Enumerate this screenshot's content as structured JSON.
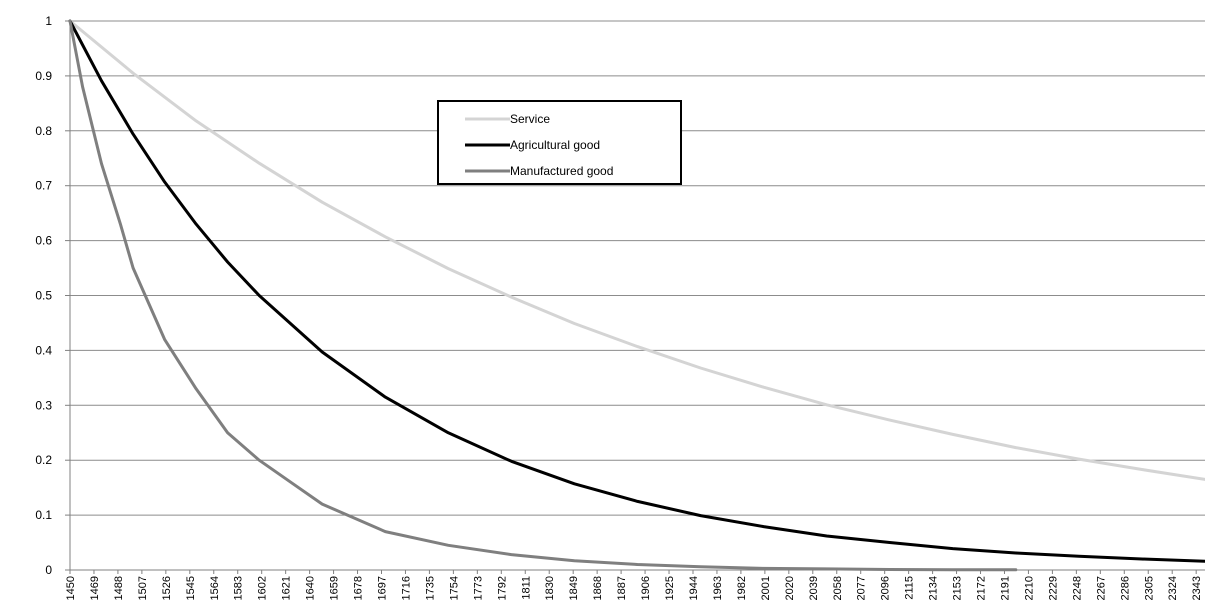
{
  "chart_data": {
    "type": "line",
    "title": "",
    "xlabel": "",
    "ylabel": "",
    "ylim": [
      0,
      1
    ],
    "yticks": [
      "0",
      "0.1",
      "0.2",
      "0.3",
      "0.4",
      "0.5",
      "0.6",
      "0.7",
      "0.8",
      "0.9",
      "1"
    ],
    "x_start": 1450,
    "x_end": 2350,
    "x_tick_labels": [
      "1450",
      "1469",
      "1488",
      "1507",
      "1526",
      "1545",
      "1564",
      "1583",
      "1602",
      "1621",
      "1640",
      "1659",
      "1678",
      "1697",
      "1716",
      "1735",
      "1754",
      "1773",
      "1792",
      "1811",
      "1830",
      "1849",
      "1868",
      "1887",
      "1906",
      "1925",
      "1944",
      "1963",
      "1982",
      "2001",
      "2020",
      "2039",
      "2058",
      "2077",
      "2096",
      "2115",
      "2134",
      "2153",
      "2172",
      "2191",
      "2210",
      "2229",
      "2248",
      "2267",
      "2286",
      "2305",
      "2324",
      "2343"
    ],
    "grid": true,
    "legend_position": "top-center",
    "series": [
      {
        "name": "Service",
        "color": "#d4d4d4",
        "x": [
          1450,
          1500,
          1550,
          1600,
          1650,
          1700,
          1750,
          1800,
          1850,
          1900,
          1950,
          2000,
          2050,
          2100,
          2150,
          2200,
          2250,
          2300,
          2350
        ],
        "values": [
          1.0,
          0.905,
          0.818,
          0.741,
          0.67,
          0.607,
          0.549,
          0.497,
          0.449,
          0.407,
          0.368,
          0.333,
          0.301,
          0.273,
          0.247,
          0.223,
          0.202,
          0.183,
          0.165
        ]
      },
      {
        "name": "Agricultural good",
        "color": "#000000",
        "x": [
          1450,
          1475,
          1500,
          1525,
          1550,
          1575,
          1600,
          1650,
          1700,
          1750,
          1800,
          1850,
          1900,
          1950,
          2000,
          2050,
          2100,
          2150,
          2200,
          2250,
          2300,
          2350
        ],
        "values": [
          1.0,
          0.891,
          0.794,
          0.707,
          0.63,
          0.561,
          0.5,
          0.397,
          0.315,
          0.25,
          0.198,
          0.157,
          0.125,
          0.099,
          0.079,
          0.062,
          0.05,
          0.039,
          0.031,
          0.025,
          0.02,
          0.016
        ]
      },
      {
        "name": "Manufactured good",
        "color": "#7f7f7f",
        "x": [
          1450,
          1460,
          1475,
          1490,
          1500,
          1525,
          1550,
          1575,
          1600,
          1625,
          1650,
          1700,
          1750,
          1800,
          1850,
          1900,
          1950,
          2000,
          2050,
          2100,
          2150,
          2200
        ],
        "values": [
          1.0,
          0.88,
          0.74,
          0.63,
          0.55,
          0.42,
          0.33,
          0.25,
          0.2,
          0.16,
          0.12,
          0.07,
          0.045,
          0.028,
          0.017,
          0.01,
          0.006,
          0.003,
          0.002,
          0.001,
          0.0005,
          0.0003
        ]
      }
    ]
  }
}
